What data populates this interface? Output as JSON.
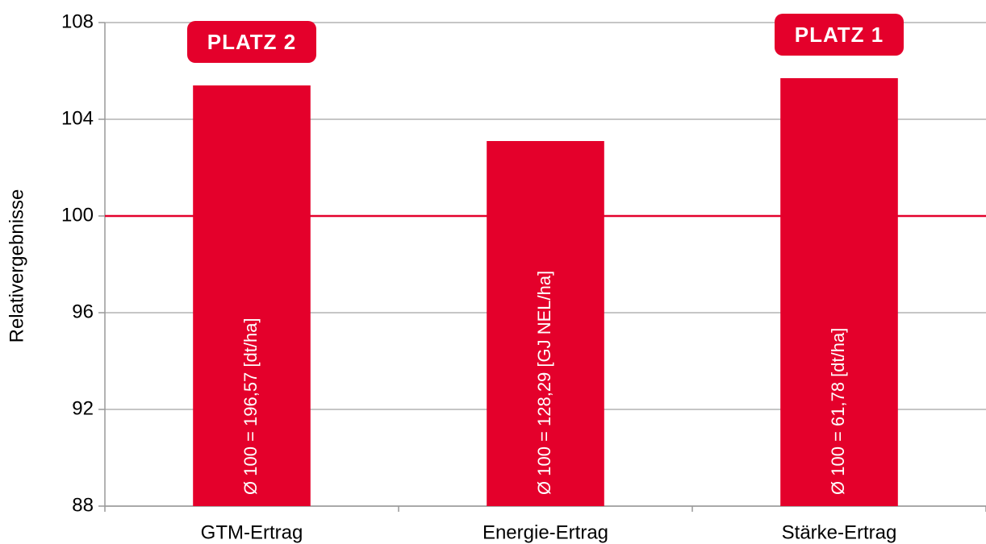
{
  "chart_data": {
    "type": "bar",
    "y_label": "Relativergebnisse",
    "categories": [
      "GTM-Ertrag",
      "Energie-Ertrag",
      "Stärke-Ertrag"
    ],
    "values": [
      105.4,
      103.1,
      105.7
    ],
    "bar_labels": [
      "Ø 100 = 196,57 [dt/ha]",
      "Ø 100 = 128,29 [GJ NEL/ha]",
      "Ø 100 = 61,78 [dt/ha]"
    ],
    "badges": [
      "PLATZ 2",
      null,
      "PLATZ 1"
    ],
    "color": "#e4002b",
    "reference_line": 100,
    "reference_color": "#e4002b",
    "ylim": [
      88,
      108
    ],
    "yticks": [
      88,
      92,
      96,
      100,
      104,
      108
    ],
    "grid": true
  }
}
